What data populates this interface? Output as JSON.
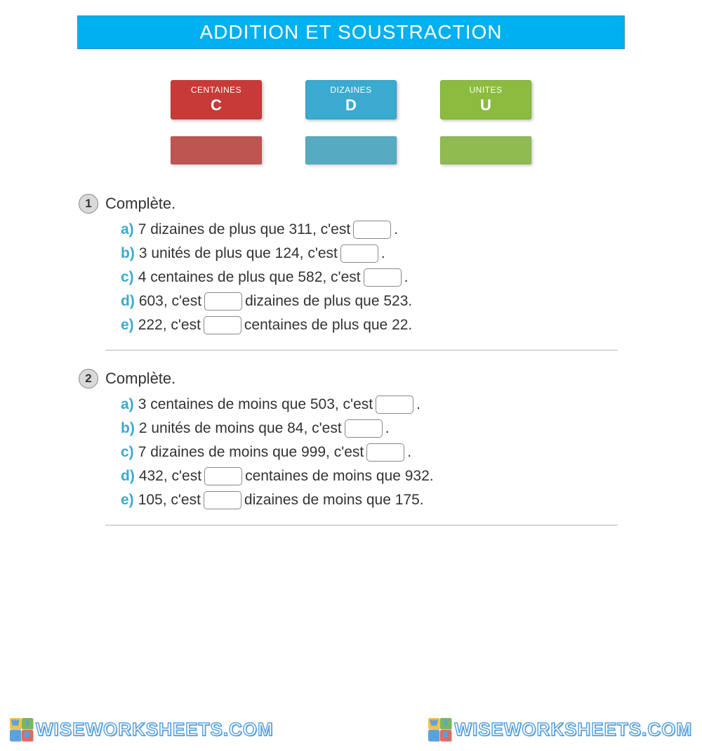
{
  "title": "ADDITION ET SOUSTRACTION",
  "colors": {
    "banner_bg": "#00b0f0",
    "centaines_bg": "#c73a37",
    "centaines_muted": "#bf5550",
    "dizaines_bg": "#3aaad0",
    "dizaines_muted": "#56abc2",
    "unites_bg": "#8bbb3f",
    "unites_muted": "#90bb51",
    "letter_color": "#3aaad0",
    "text_color": "#333333"
  },
  "legend": [
    {
      "label": "CENTAINES",
      "letter": "C",
      "key": "centaines"
    },
    {
      "label": "DIZAINES",
      "letter": "D",
      "key": "dizaines"
    },
    {
      "label": "UNITES",
      "letter": "U",
      "key": "unites"
    }
  ],
  "exercises": [
    {
      "number": "1",
      "prompt": "Complète.",
      "lines": [
        {
          "letter": "a)",
          "before": "7 dizaines de plus que 311, c'est ",
          "after": "."
        },
        {
          "letter": "b)",
          "before": "3 unités de plus que 124, c'est ",
          "after": "."
        },
        {
          "letter": "c)",
          "before": "4 centaines de plus que 582, c'est ",
          "after": "."
        },
        {
          "letter": "d)",
          "before": "603, c'est ",
          "after": " dizaines de plus que 523."
        },
        {
          "letter": "e)",
          "before": "222, c'est ",
          "after": " centaines de plus que 22."
        }
      ]
    },
    {
      "number": "2",
      "prompt": "Complète.",
      "lines": [
        {
          "letter": "a)",
          "before": "3 centaines de moins que 503, c'est ",
          "after": "."
        },
        {
          "letter": "b)",
          "before": "2 unités de moins que 84, c'est ",
          "after": "."
        },
        {
          "letter": "c)",
          "before": "7 dizaines de moins que 999, c'est ",
          "after": "."
        },
        {
          "letter": "d)",
          "before": "432, c'est ",
          "after": " centaines de moins que 932."
        },
        {
          "letter": "e)",
          "before": "105, c'est ",
          "after": " dizaines de moins que 175."
        }
      ]
    }
  ],
  "watermark": {
    "text": "WISEWORKSHEETS.COM",
    "logo": [
      "W",
      "I",
      "S",
      "E"
    ],
    "logo_colors": [
      "#f2c14e",
      "#7bb661",
      "#5aa3de",
      "#e06b5f"
    ]
  }
}
